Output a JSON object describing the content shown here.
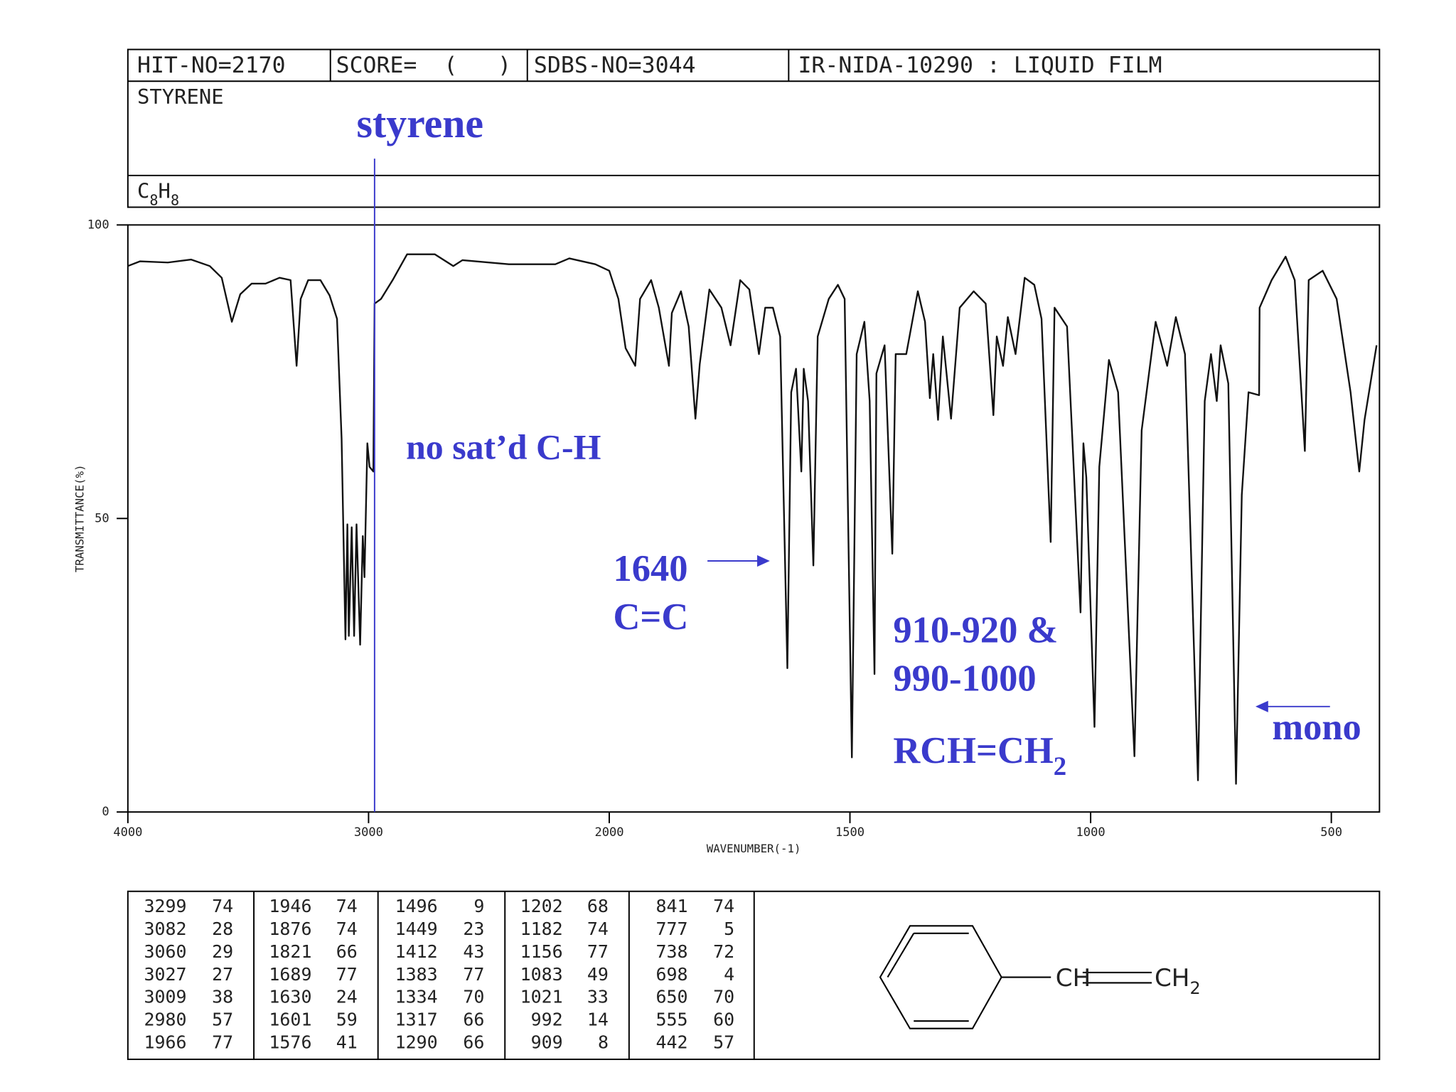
{
  "header": {
    "hit_no": "HIT-NO=2170",
    "score": "SCORE=  (   )",
    "sdbs_no": "SDBS-NO=3044",
    "method": "IR-NIDA-10290 : LIQUID FILM",
    "name": "STYRENE",
    "formula": [
      "C",
      "8",
      "H",
      "8"
    ]
  },
  "chart_data": {
    "type": "line",
    "x_label": "WAVENUMBER(-1)",
    "y_label": "TRANSMITTANCE(%)",
    "xlim": [
      4000,
      400
    ],
    "xticks": [
      4000,
      3000,
      2000,
      1500,
      1000,
      500
    ],
    "xscale": "piecewise",
    "ylim": [
      0,
      100
    ],
    "yticks": [
      0,
      50,
      100
    ],
    "color": "#111111",
    "reference_line": {
      "x": 2975,
      "color": "#3a3acc"
    },
    "annotation_color": "#3a3acc",
    "annotations": [
      [
        "styrene"
      ],
      [
        "no sat’d C-H"
      ],
      [
        "1640",
        "C=C"
      ],
      [
        "910-920 &",
        "990-1000"
      ],
      [
        "RCH=CH",
        "2"
      ],
      [
        "mono"
      ]
    ],
    "x": [
      4000,
      3950,
      3834,
      3737,
      3660,
      3610,
      3568,
      3533,
      3486,
      3428,
      3370,
      3324,
      3299,
      3282,
      3251,
      3200,
      3162,
      3131,
      3112,
      3096,
      3088,
      3082,
      3070,
      3060,
      3050,
      3035,
      3024,
      3017,
      3005,
      2996,
      2980,
      2975,
      2948,
      2900,
      2840,
      2725,
      2648,
      2610,
      2417,
      2224,
      2166,
      2058,
      2000,
      1981,
      1966,
      1946,
      1936,
      1913,
      1897,
      1876,
      1870,
      1851,
      1835,
      1821,
      1812,
      1792,
      1767,
      1748,
      1728,
      1709,
      1689,
      1676,
      1660,
      1645,
      1630,
      1622,
      1612,
      1601,
      1596,
      1587,
      1576,
      1567,
      1544,
      1525,
      1511,
      1496,
      1486,
      1470,
      1459,
      1449,
      1445,
      1428,
      1412,
      1405,
      1383,
      1359,
      1344,
      1334,
      1327,
      1317,
      1307,
      1290,
      1272,
      1243,
      1218,
      1202,
      1195,
      1182,
      1172,
      1156,
      1137,
      1117,
      1102,
      1083,
      1075,
      1049,
      1021,
      1015,
      1009,
      992,
      982,
      962,
      943,
      909,
      894,
      865,
      841,
      823,
      804,
      777,
      763,
      750,
      738,
      730,
      714,
      698,
      686,
      672,
      650,
      649,
      624,
      595,
      576,
      555,
      547,
      518,
      489,
      460,
      442,
      431,
      406
    ],
    "values": [
      93,
      93.8,
      93.6,
      94.1,
      93,
      91,
      83.5,
      88.2,
      90,
      90,
      91,
      90.6,
      76,
      87.4,
      90.6,
      90.6,
      88,
      84,
      63.6,
      29.4,
      49,
      30,
      48.5,
      30,
      49,
      28.5,
      47,
      40,
      62.8,
      58.8,
      58,
      86.6,
      87.4,
      90.6,
      95,
      95,
      93,
      94,
      93.3,
      93.3,
      94.3,
      93.3,
      92.2,
      87.4,
      79,
      76,
      87.4,
      90.6,
      85.9,
      76,
      85,
      88.7,
      82.7,
      67,
      76.3,
      89,
      85.9,
      79.5,
      90.6,
      89,
      78,
      85.9,
      85.9,
      81,
      24.5,
      71.5,
      75.5,
      58,
      75.5,
      70,
      42,
      81,
      87.4,
      89.8,
      87.4,
      9.3,
      78,
      83.5,
      70,
      23.5,
      74.7,
      79.5,
      44,
      78,
      78,
      88.7,
      83.5,
      70.5,
      78,
      66.8,
      81,
      67,
      85.9,
      88.7,
      86.6,
      67.6,
      81,
      76,
      84.3,
      78,
      91,
      89.8,
      84,
      46,
      85.9,
      82.7,
      34,
      62.8,
      57,
      14.5,
      58.8,
      77,
      71.5,
      9.5,
      65,
      83.5,
      76,
      84.3,
      78,
      5.4,
      70,
      78,
      70,
      79.5,
      73,
      4.8,
      54,
      71.5,
      71,
      85.9,
      90.6,
      94.6,
      90.6,
      61.5,
      90.6,
      92.2,
      87.4,
      71.5,
      58,
      66.8,
      79.5
    ]
  },
  "peak_table": [
    [
      [
        3299,
        74
      ],
      [
        3082,
        28
      ],
      [
        3060,
        29
      ],
      [
        3027,
        27
      ],
      [
        3009,
        38
      ],
      [
        2980,
        57
      ],
      [
        1966,
        77
      ]
    ],
    [
      [
        1946,
        74
      ],
      [
        1876,
        74
      ],
      [
        1821,
        66
      ],
      [
        1689,
        77
      ],
      [
        1630,
        24
      ],
      [
        1601,
        59
      ],
      [
        1576,
        41
      ]
    ],
    [
      [
        1496,
        9
      ],
      [
        1449,
        23
      ],
      [
        1412,
        43
      ],
      [
        1383,
        77
      ],
      [
        1334,
        70
      ],
      [
        1317,
        66
      ],
      [
        1290,
        66
      ]
    ],
    [
      [
        1202,
        68
      ],
      [
        1182,
        74
      ],
      [
        1156,
        77
      ],
      [
        1083,
        49
      ],
      [
        1021,
        33
      ],
      [
        992,
        14
      ],
      [
        909,
        8
      ]
    ],
    [
      [
        841,
        74
      ],
      [
        777,
        5
      ],
      [
        738,
        72
      ],
      [
        698,
        4
      ],
      [
        650,
        70
      ],
      [
        555,
        60
      ],
      [
        442,
        57
      ]
    ]
  ],
  "structure": {
    "left": [
      "CH"
    ],
    "right": [
      "CH",
      "2"
    ]
  }
}
